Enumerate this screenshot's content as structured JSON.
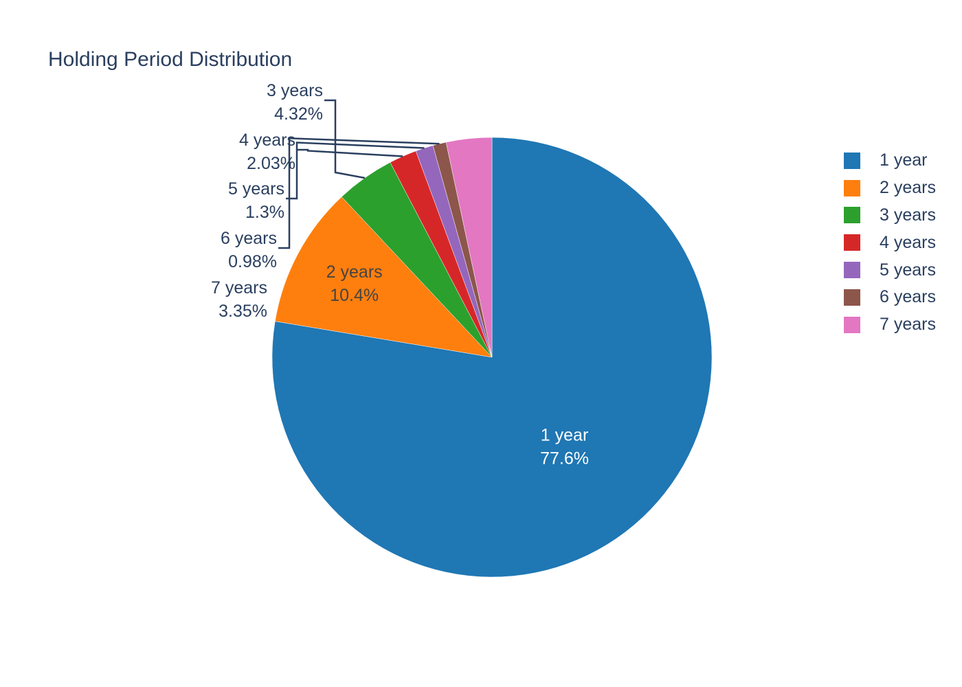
{
  "chart_data": {
    "type": "pie",
    "title": "Holding Period Distribution",
    "categories": [
      "1 year",
      "2 years",
      "3 years",
      "4 years",
      "5 years",
      "6 years",
      "7 years"
    ],
    "values": [
      77.6,
      10.4,
      4.32,
      2.03,
      1.3,
      0.98,
      3.35
    ],
    "percent_labels": [
      "77.6%",
      "10.4%",
      "4.32%",
      "2.03%",
      "1.3%",
      "0.98%",
      "3.35%"
    ],
    "colors": [
      "#1f77b4",
      "#ff7f0e",
      "#2ca02c",
      "#d62728",
      "#9467bd",
      "#8c564b",
      "#e377c2"
    ],
    "direction": "clockwise",
    "start_angle": "top",
    "legend_position": "right",
    "legend": [
      "1 year",
      "2 years",
      "3 years",
      "4 years",
      "5 years",
      "6 years",
      "7 years"
    ]
  }
}
